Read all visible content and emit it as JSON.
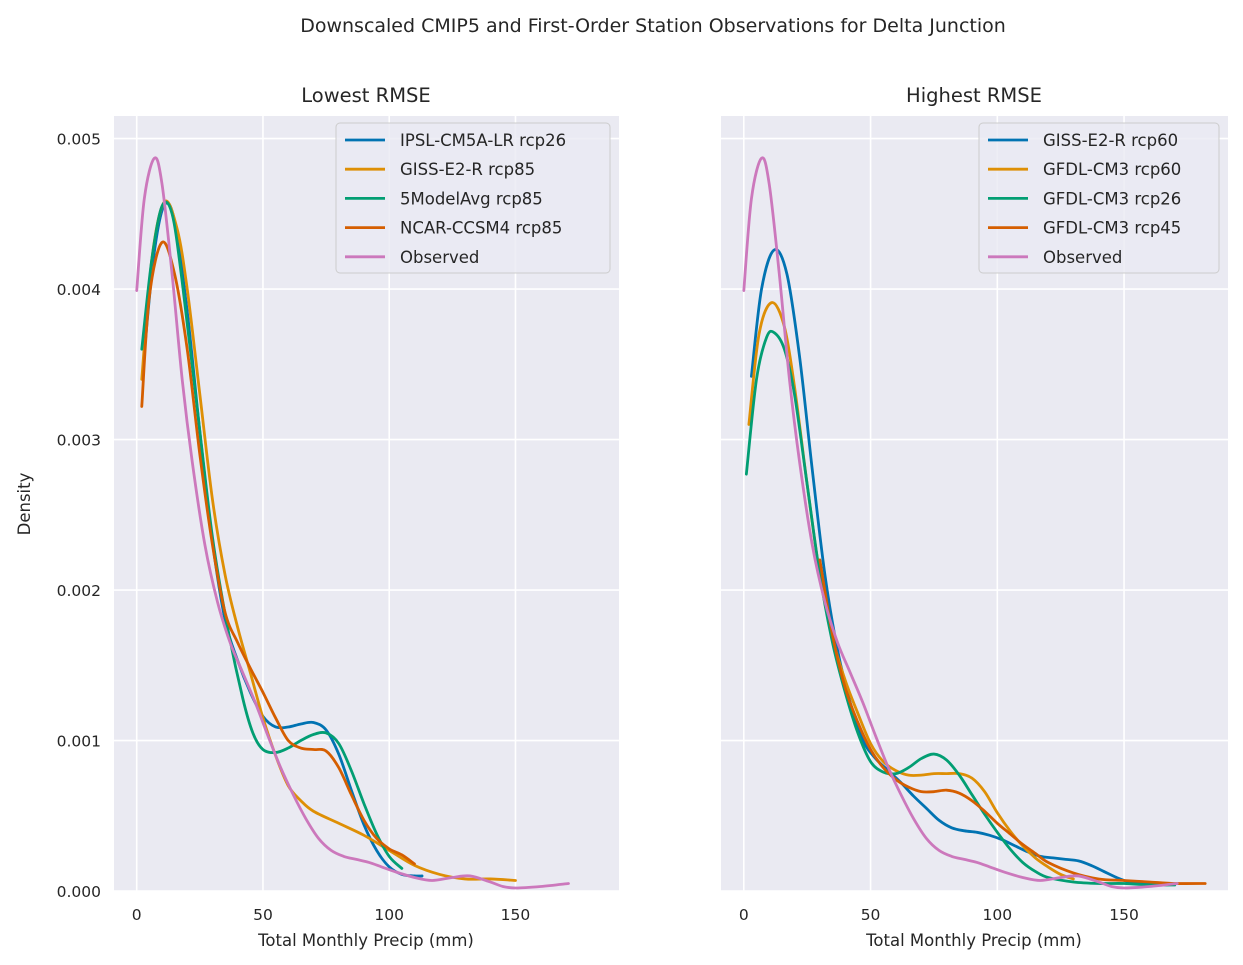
{
  "figure": {
    "suptitle": "Downscaled CMIP5 and First-Order Station Observations for Delta Junction"
  },
  "colors": {
    "background": "#EAEAF2",
    "grid": "#FFFFFF",
    "blue": "#0173B2",
    "orange": "#DE8F05",
    "green": "#029E73",
    "vermillion": "#D55E00",
    "pink": "#CC78BC"
  },
  "chart_data": [
    {
      "type": "line",
      "title": "Lowest RMSE",
      "xlabel": "Total Monthly Precip (mm)",
      "ylabel": "Density",
      "xlim": [
        -9,
        191
      ],
      "ylim": [
        0,
        0.00515
      ],
      "xticks": [
        0,
        50,
        100,
        150
      ],
      "yticks": [
        0.0,
        0.001,
        0.002,
        0.003,
        0.004,
        0.005
      ],
      "xtick_labels": [
        "0",
        "50",
        "100",
        "150"
      ],
      "ytick_labels": [
        "0.000",
        "0.001",
        "0.002",
        "0.003",
        "0.004",
        "0.005"
      ],
      "grid": true,
      "legend_position": "top-right",
      "series": [
        {
          "name": "IPSL-CM5A-LR rcp26",
          "color": "#0173B2",
          "x": [
            3,
            7,
            11,
            15,
            20,
            25,
            30,
            35,
            40,
            45,
            50,
            55,
            60,
            65,
            70,
            75,
            80,
            85,
            90,
            95,
            100,
            105,
            110,
            113
          ],
          "y": [
            0.00358,
            0.00425,
            0.00456,
            0.00445,
            0.00385,
            0.00305,
            0.00232,
            0.0018,
            0.00153,
            0.00132,
            0.00116,
            0.00109,
            0.00109,
            0.00111,
            0.00112,
            0.00107,
            0.00091,
            0.00067,
            0.00044,
            0.00027,
            0.00016,
            0.00011,
            0.0001,
            0.0001
          ]
        },
        {
          "name": "GISS-E2-R rcp85",
          "color": "#DE8F05",
          "x": [
            2,
            6,
            11,
            16,
            20,
            25,
            30,
            35,
            40,
            45,
            50,
            55,
            60,
            65,
            70,
            80,
            90,
            100,
            110,
            120,
            130,
            140,
            150
          ],
          "y": [
            0.0034,
            0.0042,
            0.00458,
            0.0044,
            0.004,
            0.0033,
            0.0026,
            0.0021,
            0.00175,
            0.00145,
            0.00115,
            0.0009,
            0.0007,
            0.0006,
            0.00053,
            0.00045,
            0.00037,
            0.00027,
            0.00017,
            0.00011,
            8e-05,
            8e-05,
            7e-05
          ]
        },
        {
          "name": "5ModelAvg rcp85",
          "color": "#029E73",
          "x": [
            2,
            6,
            10,
            14,
            18,
            24,
            30,
            36,
            42,
            46,
            50,
            55,
            60,
            65,
            70,
            75,
            80,
            85,
            90,
            95,
            100,
            105
          ],
          "y": [
            0.0036,
            0.0042,
            0.00455,
            0.0045,
            0.00405,
            0.0032,
            0.00235,
            0.00175,
            0.00128,
            0.00105,
            0.00094,
            0.00092,
            0.00095,
            0.001,
            0.00104,
            0.00105,
            0.00098,
            0.0008,
            0.00058,
            0.00038,
            0.00023,
            0.00015
          ]
        },
        {
          "name": "NCAR-CCSM4 rcp85",
          "color": "#D55E00",
          "x": [
            2,
            5,
            10,
            15,
            20,
            25,
            30,
            35,
            40,
            45,
            50,
            55,
            60,
            65,
            70,
            75,
            80,
            85,
            90,
            95,
            100,
            105,
            110
          ],
          "y": [
            0.00322,
            0.00395,
            0.00431,
            0.0041,
            0.0036,
            0.0029,
            0.0023,
            0.00185,
            0.00165,
            0.00148,
            0.00132,
            0.00115,
            0.001,
            0.00095,
            0.00094,
            0.00093,
            0.00082,
            0.00064,
            0.00047,
            0.00035,
            0.00028,
            0.00024,
            0.00018
          ]
        },
        {
          "name": "Observed",
          "color": "#CC78BC",
          "x": [
            0,
            3,
            7,
            10,
            14,
            18,
            22,
            27,
            32,
            37,
            42,
            47,
            52,
            57,
            62,
            67,
            72,
            77,
            82,
            87,
            92,
            97,
            102,
            110,
            117,
            125,
            132,
            140,
            145,
            150,
            160,
            171
          ],
          "y": [
            0.00399,
            0.0046,
            0.00487,
            0.0047,
            0.0041,
            0.0034,
            0.00285,
            0.0023,
            0.00192,
            0.00165,
            0.00145,
            0.00125,
            0.00103,
            0.00082,
            0.00064,
            0.00048,
            0.00035,
            0.00027,
            0.00023,
            0.00021,
            0.00019,
            0.00016,
            0.00013,
            9e-05,
            7e-05,
            9e-05,
            0.0001,
            6e-05,
            3e-05,
            2e-05,
            3e-05,
            5e-05
          ]
        }
      ]
    },
    {
      "type": "line",
      "title": "Highest RMSE",
      "xlabel": "Total Monthly Precip (mm)",
      "ylabel": "",
      "xlim": [
        -9,
        191
      ],
      "ylim": [
        0,
        0.00515
      ],
      "xticks": [
        0,
        50,
        100,
        150
      ],
      "yticks": [
        0.0,
        0.001,
        0.002,
        0.003,
        0.004,
        0.005
      ],
      "xtick_labels": [
        "0",
        "50",
        "100",
        "150"
      ],
      "ytick_labels": [],
      "grid": true,
      "legend_position": "top-right",
      "series": [
        {
          "name": "GISS-E2-R rcp60",
          "color": "#0173B2",
          "x": [
            3,
            7,
            12,
            17,
            22,
            27,
            32,
            37,
            42,
            47,
            52,
            57,
            62,
            67,
            72,
            77,
            82,
            87,
            92,
            97,
            102,
            107,
            112,
            117,
            122,
            127,
            132,
            137,
            142,
            147,
            152,
            157,
            162,
            167
          ],
          "y": [
            0.00342,
            0.004,
            0.00426,
            0.0041,
            0.00355,
            0.0028,
            0.0021,
            0.0016,
            0.00125,
            0.001,
            0.00088,
            0.0008,
            0.00072,
            0.00063,
            0.00055,
            0.00047,
            0.00042,
            0.0004,
            0.00039,
            0.00037,
            0.00034,
            0.0003,
            0.00026,
            0.00023,
            0.00022,
            0.00021,
            0.0002,
            0.00017,
            0.00013,
            9e-05,
            6e-05,
            5e-05,
            5e-05,
            5e-05
          ]
        },
        {
          "name": "GFDL-CM3 rcp60",
          "color": "#DE8F05",
          "x": [
            2,
            6,
            11,
            16,
            20,
            25,
            30,
            35,
            40,
            45,
            50,
            55,
            60,
            65,
            70,
            75,
            80,
            85,
            90,
            95,
            100,
            105,
            110,
            115,
            120,
            125,
            130
          ],
          "y": [
            0.0031,
            0.0037,
            0.00391,
            0.00375,
            0.00335,
            0.0027,
            0.0021,
            0.00168,
            0.0014,
            0.00118,
            0.00098,
            0.00086,
            0.0008,
            0.00077,
            0.00077,
            0.00078,
            0.00078,
            0.00078,
            0.00075,
            0.00066,
            0.00052,
            0.0004,
            0.0003,
            0.00022,
            0.00016,
            0.00011,
            8e-05
          ]
        },
        {
          "name": "GFDL-CM3 rcp26",
          "color": "#029E73",
          "x": [
            1,
            5,
            9,
            12,
            16,
            20,
            25,
            30,
            35,
            40,
            45,
            50,
            55,
            60,
            65,
            70,
            75,
            80,
            85,
            90,
            95,
            100,
            105,
            110,
            115,
            120,
            130,
            140,
            150,
            160,
            170
          ],
          "y": [
            0.00277,
            0.0034,
            0.00368,
            0.00371,
            0.0036,
            0.0033,
            0.0027,
            0.0021,
            0.00165,
            0.00132,
            0.00105,
            0.00086,
            0.00079,
            0.00078,
            0.00082,
            0.00088,
            0.00091,
            0.00087,
            0.00077,
            0.00064,
            0.00051,
            0.00039,
            0.00028,
            0.00019,
            0.00013,
            9e-05,
            6e-05,
            5e-05,
            5e-05,
            4e-05,
            4e-05
          ]
        },
        {
          "name": "GFDL-CM3 rcp45",
          "color": "#D55E00",
          "x": [
            30,
            35,
            40,
            45,
            50,
            55,
            60,
            65,
            70,
            75,
            80,
            85,
            90,
            95,
            100,
            105,
            110,
            115,
            120,
            130,
            140,
            150,
            160,
            170,
            182
          ],
          "y": [
            0.0022,
            0.0017,
            0.00135,
            0.00112,
            0.00094,
            0.00082,
            0.00074,
            0.00069,
            0.00066,
            0.00066,
            0.00067,
            0.00065,
            0.0006,
            0.00053,
            0.00045,
            0.00038,
            0.00031,
            0.00025,
            0.00019,
            0.00012,
            8e-05,
            7e-05,
            6e-05,
            5e-05,
            5e-05
          ]
        },
        {
          "name": "Observed",
          "color": "#CC78BC",
          "x": [
            0,
            3,
            7,
            10,
            14,
            18,
            22,
            27,
            32,
            37,
            42,
            47,
            52,
            57,
            62,
            67,
            72,
            77,
            82,
            87,
            92,
            97,
            102,
            110,
            117,
            125,
            132,
            140,
            145,
            150,
            160,
            171
          ],
          "y": [
            0.00399,
            0.0046,
            0.00487,
            0.0047,
            0.0041,
            0.0034,
            0.00285,
            0.0023,
            0.00192,
            0.00165,
            0.00145,
            0.00125,
            0.00103,
            0.00082,
            0.00064,
            0.00048,
            0.00035,
            0.00027,
            0.00023,
            0.00021,
            0.00019,
            0.00016,
            0.00013,
            9e-05,
            7e-05,
            9e-05,
            0.0001,
            6e-05,
            3e-05,
            2e-05,
            3e-05,
            5e-05
          ]
        }
      ]
    }
  ]
}
